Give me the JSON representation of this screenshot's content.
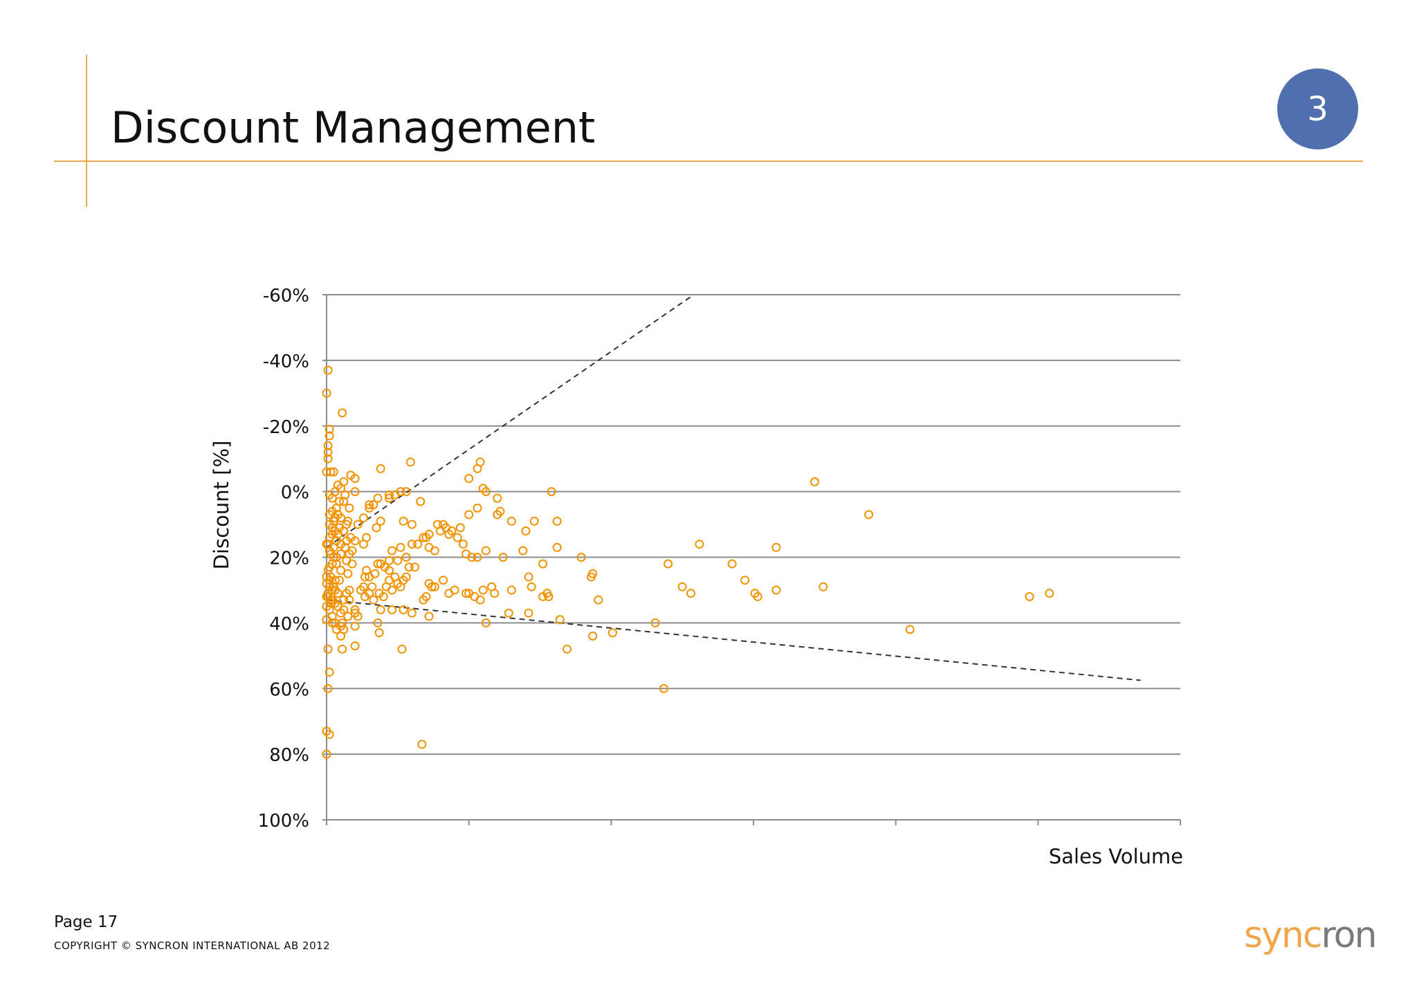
{
  "slide": {
    "title": "Discount Management",
    "badge": "3",
    "page": "Page 17",
    "copyright": "COPYRIGHT © SYNCRON INTERNATIONAL AB 2012",
    "logo_part1": "sync",
    "logo_part2": "ron",
    "accent_color": "#f0a64a",
    "badge_color": "#4f6faf"
  },
  "chart_data": {
    "type": "scatter",
    "title": "",
    "xlabel": "Sales Volume",
    "ylabel": "Discount [%]",
    "ylim": [
      -60,
      100
    ],
    "yticks": [
      -60,
      -40,
      -20,
      0,
      20,
      40,
      60,
      80,
      100
    ],
    "ytick_labels": [
      "-60%",
      "-40%",
      "-20%",
      "0%",
      "20%",
      "40%",
      "60%",
      "80%",
      "100%"
    ],
    "xlim": [
      0,
      6
    ],
    "xticks": [
      0,
      1,
      2,
      3,
      4,
      5,
      6
    ],
    "grid": true,
    "marker_color": "#f39200",
    "trend_lines": [
      {
        "name": "upper-trend",
        "x": [
          0,
          2.58
        ],
        "y": [
          17,
          -60
        ]
      },
      {
        "name": "lower-trend",
        "x": [
          0,
          5.72
        ],
        "y": [
          33,
          57.5
        ]
      }
    ],
    "points": [
      [
        0.01,
        -37
      ],
      [
        0.0,
        -30
      ],
      [
        0.11,
        -24
      ],
      [
        0.02,
        -19
      ],
      [
        0.02,
        -17
      ],
      [
        0.01,
        -14
      ],
      [
        0.01,
        -12
      ],
      [
        0.01,
        -10
      ],
      [
        0.0,
        -6
      ],
      [
        0.03,
        -6
      ],
      [
        0.05,
        -6
      ],
      [
        0.17,
        -5
      ],
      [
        0.2,
        -4
      ],
      [
        0.12,
        -3
      ],
      [
        0.08,
        -2
      ],
      [
        0.1,
        -1
      ],
      [
        0.02,
        1
      ],
      [
        0.06,
        0
      ],
      [
        0.13,
        1
      ],
      [
        0.2,
        0
      ],
      [
        0.04,
        2
      ],
      [
        0.09,
        3
      ],
      [
        0.12,
        3
      ],
      [
        0.07,
        5
      ],
      [
        0.04,
        6
      ],
      [
        0.02,
        7
      ],
      [
        0.3,
        4
      ],
      [
        0.33,
        4
      ],
      [
        0.16,
        5
      ],
      [
        0.1,
        8
      ],
      [
        0.05,
        9
      ],
      [
        0.15,
        9
      ],
      [
        0.14,
        10
      ],
      [
        0.09,
        11
      ],
      [
        0.22,
        10
      ],
      [
        0.12,
        12
      ],
      [
        0.04,
        13
      ],
      [
        0.02,
        14
      ],
      [
        0.17,
        14
      ],
      [
        0.2,
        15
      ],
      [
        0.07,
        15
      ],
      [
        0.26,
        16
      ],
      [
        0.1,
        16
      ],
      [
        0.0,
        16
      ],
      [
        0.05,
        17
      ],
      [
        0.13,
        17
      ],
      [
        0.02,
        18
      ],
      [
        0.18,
        18
      ],
      [
        0.1,
        19
      ],
      [
        0.07,
        20
      ],
      [
        0.14,
        21
      ],
      [
        0.04,
        22
      ],
      [
        0.02,
        23
      ],
      [
        0.1,
        24
      ],
      [
        0.15,
        25
      ],
      [
        0.03,
        26
      ],
      [
        0.06,
        27
      ],
      [
        0.09,
        27
      ],
      [
        0.0,
        28
      ],
      [
        0.02,
        29
      ],
      [
        0.04,
        30
      ],
      [
        0.08,
        31
      ],
      [
        0.01,
        32
      ],
      [
        0.03,
        33
      ],
      [
        0.12,
        33
      ],
      [
        0.06,
        34
      ],
      [
        0.0,
        35
      ],
      [
        0.02,
        36
      ],
      [
        0.1,
        37
      ],
      [
        0.15,
        38
      ],
      [
        0.0,
        39
      ],
      [
        0.04,
        40
      ],
      [
        0.1,
        41
      ],
      [
        0.2,
        36
      ],
      [
        0.22,
        38
      ],
      [
        0.12,
        42
      ],
      [
        0.06,
        40
      ],
      [
        0.16,
        33
      ],
      [
        0.24,
        30
      ],
      [
        0.27,
        32
      ],
      [
        0.26,
        29
      ],
      [
        0.3,
        31
      ],
      [
        0.33,
        33
      ],
      [
        0.37,
        31
      ],
      [
        0.4,
        32
      ],
      [
        0.42,
        29
      ],
      [
        0.44,
        27
      ],
      [
        0.48,
        26
      ],
      [
        0.5,
        28
      ],
      [
        0.46,
        30
      ],
      [
        0.28,
        24
      ],
      [
        0.34,
        25
      ],
      [
        0.36,
        22
      ],
      [
        0.44,
        21
      ],
      [
        0.5,
        21
      ],
      [
        0.56,
        20
      ],
      [
        0.46,
        18
      ],
      [
        0.52,
        17
      ],
      [
        0.6,
        16
      ],
      [
        0.64,
        16
      ],
      [
        0.7,
        14
      ],
      [
        0.72,
        13
      ],
      [
        0.78,
        10
      ],
      [
        0.6,
        10
      ],
      [
        0.54,
        9
      ],
      [
        0.38,
        9
      ],
      [
        0.35,
        11
      ],
      [
        0.28,
        14
      ],
      [
        0.26,
        8
      ],
      [
        0.3,
        5
      ],
      [
        0.36,
        2
      ],
      [
        0.44,
        1
      ],
      [
        0.48,
        1
      ],
      [
        0.52,
        0
      ],
      [
        0.56,
        0
      ],
      [
        0.44,
        2
      ],
      [
        0.59,
        -9
      ],
      [
        0.38,
        -7
      ],
      [
        0.66,
        3
      ],
      [
        0.68,
        14
      ],
      [
        0.72,
        17
      ],
      [
        0.76,
        18
      ],
      [
        0.8,
        12
      ],
      [
        0.82,
        10
      ],
      [
        0.84,
        11
      ],
      [
        0.86,
        13
      ],
      [
        0.88,
        12
      ],
      [
        0.92,
        14
      ],
      [
        0.94,
        11
      ],
      [
        0.96,
        16
      ],
      [
        0.98,
        19
      ],
      [
        1.02,
        20
      ],
      [
        1.06,
        20
      ],
      [
        1.0,
        -4
      ],
      [
        1.06,
        -7
      ],
      [
        1.08,
        -9
      ],
      [
        1.1,
        -1
      ],
      [
        1.12,
        0
      ],
      [
        1.0,
        7
      ],
      [
        1.06,
        5
      ],
      [
        1.2,
        2
      ],
      [
        1.22,
        6
      ],
      [
        1.2,
        7
      ],
      [
        1.3,
        9
      ],
      [
        1.24,
        20
      ],
      [
        1.12,
        18
      ],
      [
        1.4,
        12
      ],
      [
        1.38,
        18
      ],
      [
        1.46,
        9
      ],
      [
        1.58,
        0
      ],
      [
        1.62,
        9
      ],
      [
        1.62,
        17
      ],
      [
        1.52,
        22
      ],
      [
        1.42,
        26
      ],
      [
        1.44,
        29
      ],
      [
        1.3,
        30
      ],
      [
        1.18,
        31
      ],
      [
        1.16,
        29
      ],
      [
        1.1,
        30
      ],
      [
        1.0,
        31
      ],
      [
        1.04,
        32
      ],
      [
        1.08,
        33
      ],
      [
        0.98,
        31
      ],
      [
        0.9,
        30
      ],
      [
        0.86,
        31
      ],
      [
        0.82,
        27
      ],
      [
        0.76,
        29
      ],
      [
        0.74,
        29
      ],
      [
        0.68,
        33
      ],
      [
        0.7,
        32
      ],
      [
        0.72,
        28
      ],
      [
        0.62,
        23
      ],
      [
        0.58,
        23
      ],
      [
        0.56,
        26
      ],
      [
        0.54,
        27
      ],
      [
        0.52,
        29
      ],
      [
        0.6,
        37
      ],
      [
        0.72,
        38
      ],
      [
        0.54,
        36
      ],
      [
        0.46,
        36
      ],
      [
        0.38,
        36
      ],
      [
        0.36,
        40
      ],
      [
        0.37,
        43
      ],
      [
        0.2,
        41
      ],
      [
        0.2,
        37
      ],
      [
        0.11,
        40
      ],
      [
        0.07,
        42
      ],
      [
        0.1,
        44
      ],
      [
        0.2,
        47
      ],
      [
        0.11,
        48
      ],
      [
        0.01,
        48
      ],
      [
        0.02,
        55
      ],
      [
        0.01,
        60
      ],
      [
        0.0,
        73
      ],
      [
        0.02,
        74
      ],
      [
        0.0,
        80
      ],
      [
        0.53,
        48
      ],
      [
        0.67,
        77
      ],
      [
        1.12,
        40
      ],
      [
        1.28,
        37
      ],
      [
        1.42,
        37
      ],
      [
        1.52,
        32
      ],
      [
        1.56,
        32
      ],
      [
        1.55,
        31
      ],
      [
        1.64,
        39
      ],
      [
        1.69,
        48
      ],
      [
        1.79,
        20
      ],
      [
        1.86,
        26
      ],
      [
        1.87,
        25
      ],
      [
        1.91,
        33
      ],
      [
        1.87,
        44
      ],
      [
        2.01,
        43
      ],
      [
        2.31,
        40
      ],
      [
        2.37,
        60
      ],
      [
        2.4,
        22
      ],
      [
        2.5,
        29
      ],
      [
        2.56,
        31
      ],
      [
        2.62,
        16
      ],
      [
        2.85,
        22
      ],
      [
        2.94,
        27
      ],
      [
        3.01,
        31
      ],
      [
        3.03,
        32
      ],
      [
        3.16,
        17
      ],
      [
        3.16,
        30
      ],
      [
        3.49,
        29
      ],
      [
        3.43,
        -3
      ],
      [
        3.81,
        7
      ],
      [
        4.1,
        42
      ],
      [
        4.94,
        32
      ],
      [
        5.08,
        31
      ],
      [
        0.38,
        22
      ],
      [
        0.41,
        23
      ],
      [
        0.44,
        24
      ],
      [
        0.27,
        26
      ],
      [
        0.3,
        26
      ],
      [
        0.32,
        29
      ],
      [
        0.16,
        30
      ],
      [
        0.14,
        31
      ],
      [
        0.04,
        33
      ],
      [
        0.08,
        35
      ],
      [
        0.12,
        36
      ],
      [
        0.04,
        38
      ],
      [
        0.18,
        22
      ],
      [
        0.16,
        19
      ],
      [
        0.14,
        15
      ],
      [
        0.08,
        13
      ],
      [
        0.06,
        12
      ],
      [
        0.04,
        11
      ],
      [
        0.02,
        10
      ],
      [
        0.06,
        8
      ],
      [
        0.08,
        7
      ],
      [
        0.01,
        16
      ],
      [
        0.03,
        19
      ],
      [
        0.05,
        20
      ],
      [
        0.07,
        22
      ],
      [
        0.01,
        24
      ],
      [
        0.0,
        26
      ],
      [
        0.02,
        27
      ],
      [
        0.05,
        29
      ],
      [
        0.06,
        30
      ],
      [
        0.01,
        31
      ],
      [
        0.0,
        32
      ],
      [
        0.03,
        34
      ]
    ]
  }
}
